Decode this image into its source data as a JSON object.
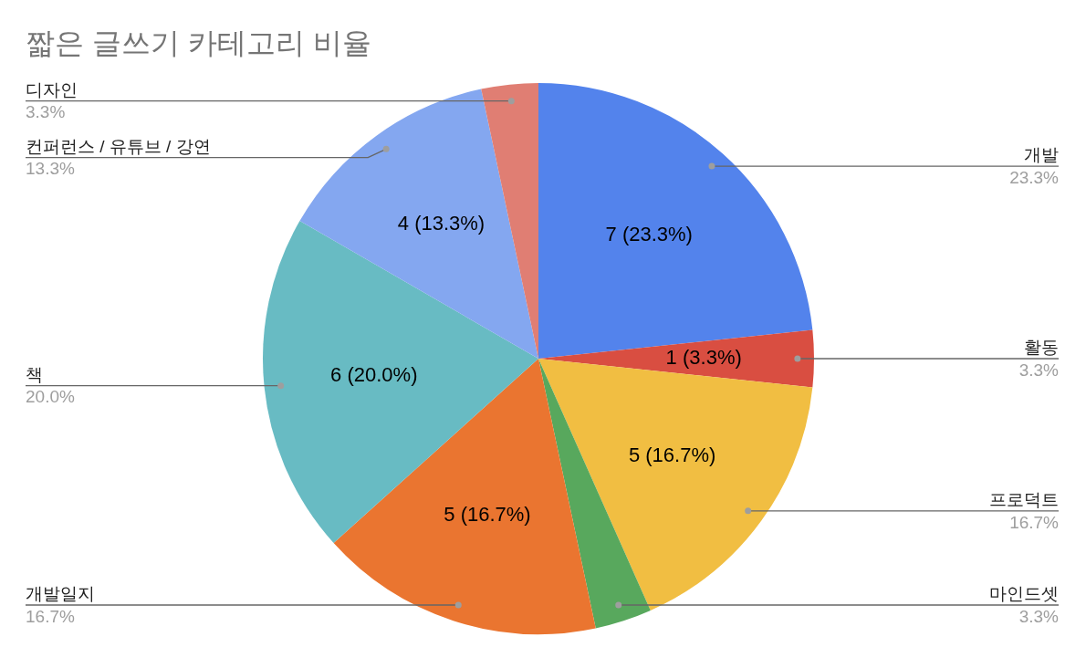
{
  "chart_data": {
    "type": "pie",
    "title": "짧은 글쓰기 카테고리 비율",
    "categories": [
      "개발",
      "활동",
      "프로덕트",
      "마인드셋",
      "개발일지",
      "책",
      "컨퍼런스 / 유튜브 / 강연",
      "디자인"
    ],
    "values": [
      7,
      1,
      5,
      1,
      5,
      6,
      4,
      1
    ],
    "colors": [
      "#5383ec",
      "#d94e41",
      "#f1be42",
      "#58a85d",
      "#ea7530",
      "#68bbc3",
      "#84a7f0",
      "#e07e73"
    ],
    "value_labels": [
      "7 (23.3%)",
      "1 (3.3%)",
      "5 (16.7%)",
      null,
      "5 (16.7%)",
      "6 (20.0%)",
      "4 (13.3%)",
      null
    ],
    "annotations": [
      "23.3%",
      "3.3%",
      "16.7%",
      "3.3%",
      "16.7%",
      "20.0%",
      "13.3%",
      "3.3%"
    ],
    "legend": false
  }
}
